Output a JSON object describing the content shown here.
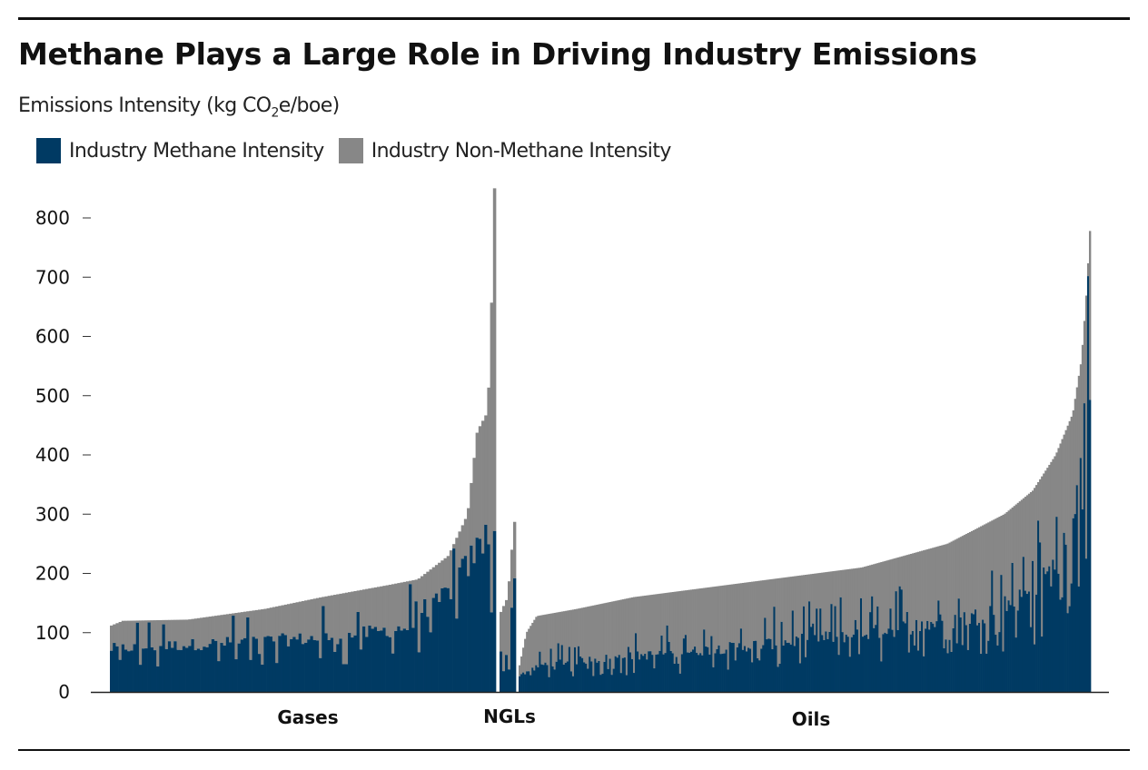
{
  "chart_data": {
    "type": "bar",
    "stacked": true,
    "title": "Methane Plays a Large Role in Driving Industry Emissions",
    "ylabel_prefix": "Emissions Intensity (kg CO",
    "ylabel_sub": "2",
    "ylabel_suffix": "e/boe)",
    "ylim": [
      0,
      850
    ],
    "yticks": [
      0,
      100,
      200,
      300,
      400,
      500,
      600,
      700,
      800
    ],
    "grid": false,
    "legend_position": "top-left",
    "series": [
      {
        "name": "Industry Methane Intensity",
        "color": "#003a63"
      },
      {
        "name": "Industry Non-Methane Intensity",
        "color": "#878787"
      }
    ],
    "groups": [
      {
        "label": "Gases",
        "bar_count": 133,
        "total_knots": [
          [
            0,
            112
          ],
          [
            0.03,
            120
          ],
          [
            0.2,
            122
          ],
          [
            0.4,
            140
          ],
          [
            0.55,
            160
          ],
          [
            0.72,
            180
          ],
          [
            0.8,
            190
          ],
          [
            0.88,
            230
          ],
          [
            0.93,
            300
          ],
          [
            0.955,
            440
          ],
          [
            0.98,
            470
          ],
          [
            0.99,
            560
          ],
          [
            0.995,
            760
          ],
          [
            1,
            850
          ]
        ],
        "methane_knots": [
          [
            0,
            75
          ],
          [
            0.3,
            85
          ],
          [
            0.6,
            95
          ],
          [
            0.8,
            115
          ],
          [
            0.9,
            190
          ],
          [
            1,
            290
          ]
        ]
      },
      {
        "label": "NGLs",
        "bar_count": 6,
        "total_knots": [
          [
            0,
            135
          ],
          [
            0.5,
            160
          ],
          [
            0.8,
            240
          ],
          [
            1,
            287
          ]
        ],
        "methane_knots": [
          [
            0,
            70
          ],
          [
            0.5,
            55
          ],
          [
            1,
            190
          ]
        ]
      },
      {
        "label": "Oils",
        "bar_count": 310,
        "total_knots": [
          [
            0,
            45
          ],
          [
            0.012,
            100
          ],
          [
            0.03,
            128
          ],
          [
            0.1,
            140
          ],
          [
            0.2,
            160
          ],
          [
            0.4,
            185
          ],
          [
            0.6,
            210
          ],
          [
            0.75,
            250
          ],
          [
            0.85,
            300
          ],
          [
            0.9,
            340
          ],
          [
            0.94,
            400
          ],
          [
            0.97,
            470
          ],
          [
            0.985,
            560
          ],
          [
            0.993,
            660
          ],
          [
            1,
            778
          ]
        ],
        "methane_knots": [
          [
            0,
            30
          ],
          [
            0.05,
            50
          ],
          [
            0.3,
            70
          ],
          [
            0.6,
            100
          ],
          [
            0.8,
            130
          ],
          [
            0.9,
            170
          ],
          [
            0.95,
            230
          ],
          [
            0.975,
            330
          ],
          [
            1,
            540
          ]
        ]
      }
    ]
  }
}
